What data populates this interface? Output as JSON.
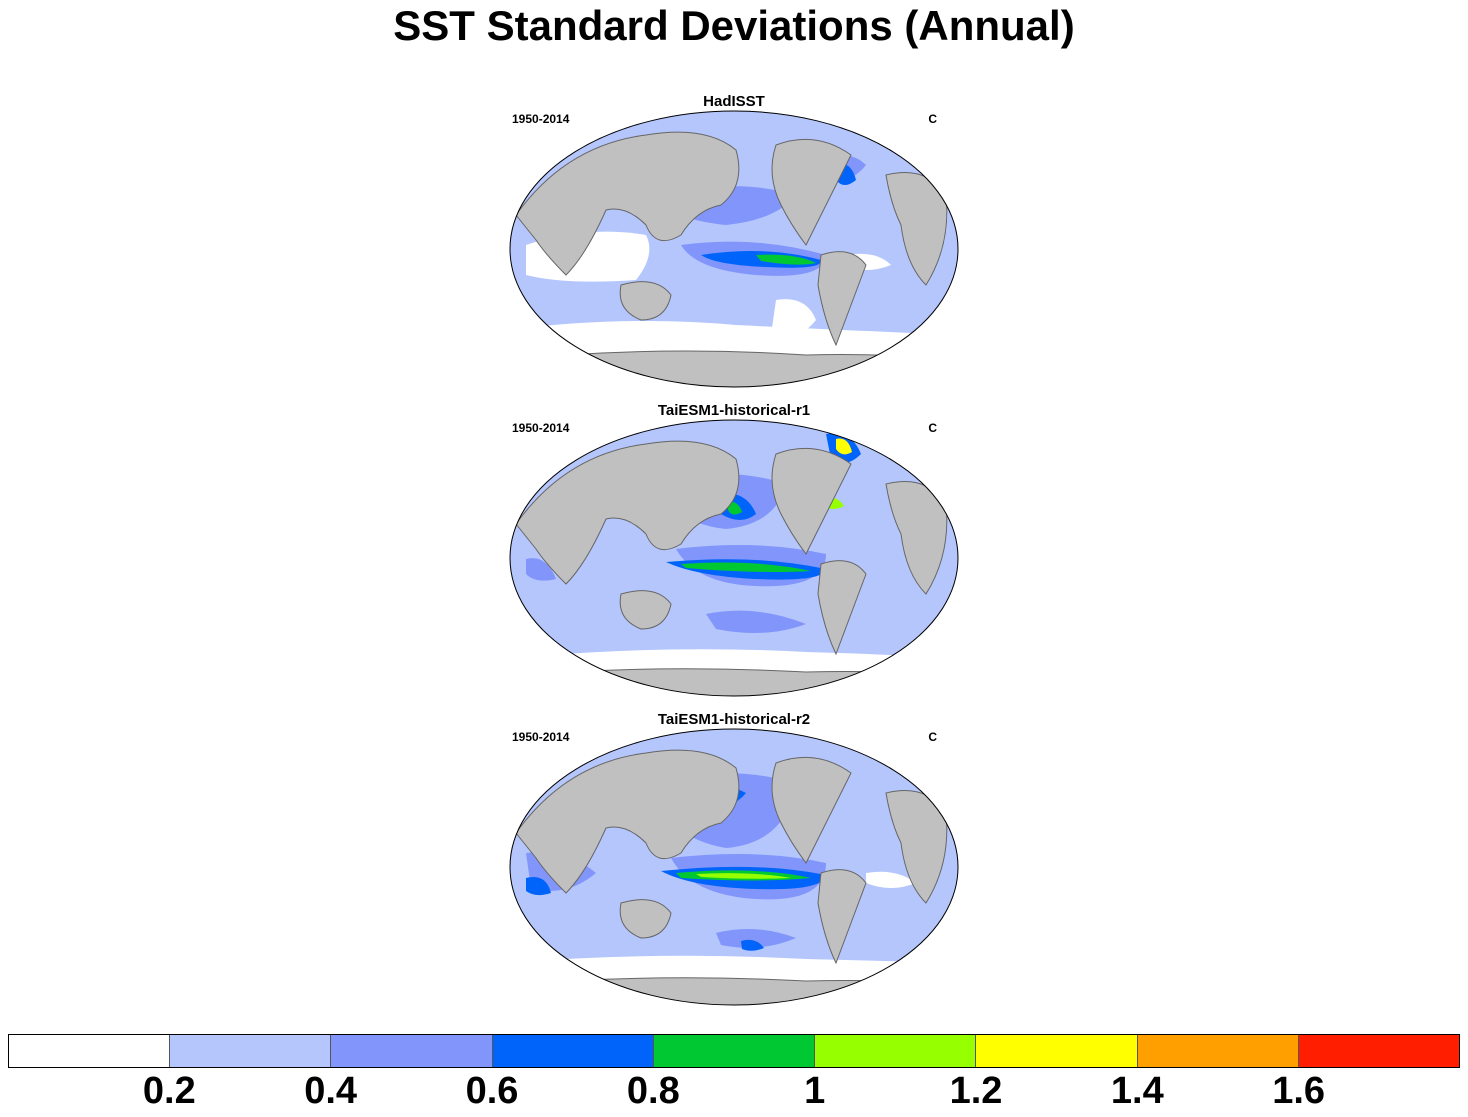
{
  "title": "SST Standard Deviations (Annual)",
  "panels": [
    {
      "title": "HadISST",
      "left_label": "1950-2014",
      "right_label": "C"
    },
    {
      "title": "TaiESM1-historical-r1",
      "left_label": "1950-2014",
      "right_label": "C"
    },
    {
      "title": "TaiESM1-historical-r2",
      "left_label": "1950-2014",
      "right_label": "C"
    }
  ],
  "colorbar": {
    "colors": [
      "#ffffff",
      "#b4c6fc",
      "#8295fb",
      "#0064fa",
      "#00c832",
      "#96ff00",
      "#ffff00",
      "#ffa000",
      "#ff1e00"
    ],
    "labels": [
      "0.2",
      "0.4",
      "0.6",
      "0.8",
      "1",
      "1.2",
      "1.4",
      "1.6"
    ]
  }
}
